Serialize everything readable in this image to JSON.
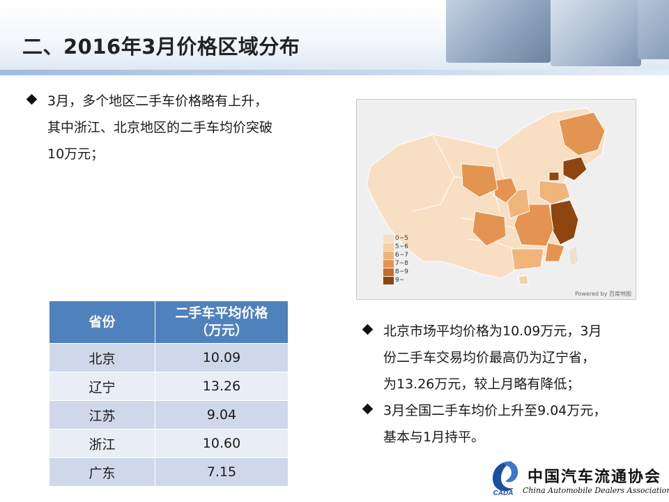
{
  "slide": {
    "title": "二、2016年3月价格区域分布"
  },
  "left_bullets": {
    "line1": "3月，多个地区二手车价格略有上升，",
    "line2": "其中浙江、北京地区的二手车均价突破",
    "line3": "10万元；"
  },
  "map": {
    "legend": [
      {
        "label": "0~5",
        "color": "#f8dfc3"
      },
      {
        "label": "5~6",
        "color": "#f6cfa3"
      },
      {
        "label": "6~7",
        "color": "#efb57b"
      },
      {
        "label": "7~8",
        "color": "#e39450"
      },
      {
        "label": "8~9",
        "color": "#c86d27"
      },
      {
        "label": "9~",
        "color": "#8e4510"
      }
    ],
    "source": "Powered by 百度地图"
  },
  "table": {
    "header": {
      "province": "省份",
      "price_line1": "二手车平均价格",
      "price_line2": "（万元）"
    },
    "rows": [
      {
        "province": "北京",
        "price": "10.09"
      },
      {
        "province": "辽宁",
        "price": "13.26"
      },
      {
        "province": "江苏",
        "price": "9.04"
      },
      {
        "province": "浙江",
        "price": "10.60"
      },
      {
        "province": "广东",
        "price": "7.15"
      }
    ]
  },
  "right_bullets": {
    "b1_line1": "北京市场平均价格为10.09万元，3月",
    "b1_line2": "份二手车交易均价最高仍为辽宁省，",
    "b1_line3": "为13.26万元，较上月略有降低；",
    "b2_line1": "3月全国二手车均价上升至9.04万元，",
    "b2_line2": "基本与1月持平。"
  },
  "logo": {
    "cn": "中国汽车流通协会",
    "en": "China Automobile Dealers Association",
    "mark": "CADA"
  }
}
